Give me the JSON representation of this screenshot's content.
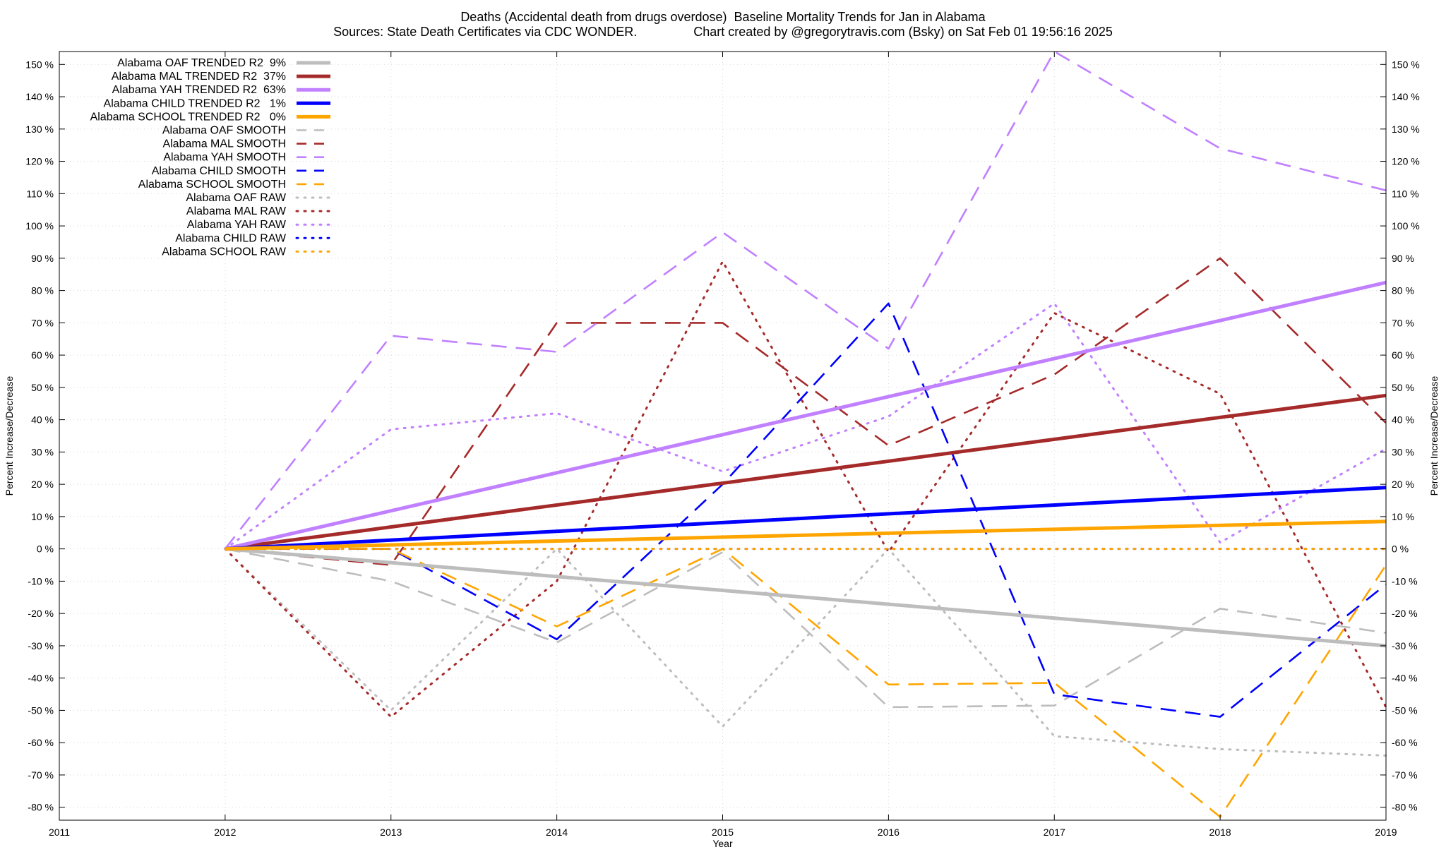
{
  "title": {
    "line1": "Deaths (Accidental death from drugs overdose)  Baseline Mortality Trends for Jan in Alabama",
    "line2": "Sources: State Death Certificates via CDC WONDER.                Chart created by @gregorytravis.com (Bsky) on Sat Feb 01 19:56:16 2025"
  },
  "chart_data": {
    "type": "line",
    "xlabel": "Year",
    "ylabel": "Percent Increase/Decrease",
    "xlim": [
      2011,
      2019
    ],
    "ylim": [
      -84,
      154
    ],
    "x_ticks": [
      2011,
      2012,
      2013,
      2014,
      2015,
      2016,
      2017,
      2018,
      2019
    ],
    "y_ticks": [
      -80,
      -70,
      -60,
      -50,
      -40,
      -30,
      -20,
      -10,
      0,
      10,
      20,
      30,
      40,
      50,
      60,
      70,
      80,
      90,
      100,
      110,
      120,
      130,
      140,
      150
    ],
    "y_tick_suffix": " %",
    "grid": true,
    "legend_position": "top-left",
    "series": [
      {
        "name": "Alabama OAF TRENDED R2  9%",
        "style": "solid",
        "color": "#bdbdbd",
        "x": [
          2012,
          2019
        ],
        "values": [
          0,
          -30
        ]
      },
      {
        "name": "Alabama MAL TRENDED R2  37%",
        "style": "solid",
        "color": "#a52a2a",
        "x": [
          2012,
          2019
        ],
        "values": [
          0,
          47.5
        ]
      },
      {
        "name": "Alabama YAH TRENDED R2  63%",
        "style": "solid",
        "color": "#c080ff",
        "x": [
          2012,
          2019
        ],
        "values": [
          0,
          82.5
        ]
      },
      {
        "name": "Alabama CHILD TRENDED R2   1%",
        "style": "solid",
        "color": "#0000ff",
        "x": [
          2012,
          2019
        ],
        "values": [
          0,
          19
        ]
      },
      {
        "name": "Alabama SCHOOL TRENDED R2   0%",
        "style": "solid",
        "color": "#ffa500",
        "x": [
          2012,
          2019
        ],
        "values": [
          0,
          8.5
        ]
      },
      {
        "name": "Alabama OAF SMOOTH",
        "style": "dashed",
        "color": "#bdbdbd",
        "x": [
          2012,
          2013,
          2014,
          2015,
          2016,
          2017,
          2018,
          2019
        ],
        "values": [
          0,
          -10,
          -29,
          -1,
          -49,
          -48.5,
          -18.5,
          -26
        ]
      },
      {
        "name": "Alabama MAL SMOOTH",
        "style": "dashed",
        "color": "#a52a2a",
        "x": [
          2012,
          2013,
          2014,
          2015,
          2016,
          2017,
          2018,
          2019
        ],
        "values": [
          0,
          -5,
          70,
          70,
          32,
          54,
          90,
          39
        ]
      },
      {
        "name": "Alabama YAH SMOOTH",
        "style": "dashed",
        "color": "#c080ff",
        "x": [
          2012,
          2013,
          2014,
          2015,
          2016,
          2017,
          2018,
          2019
        ],
        "values": [
          0,
          66,
          61,
          98,
          62,
          154,
          124,
          111
        ]
      },
      {
        "name": "Alabama CHILD SMOOTH",
        "style": "dashed",
        "color": "#0000ff",
        "x": [
          2012,
          2013,
          2014,
          2015,
          2016,
          2017,
          2018,
          2019
        ],
        "values": [
          0,
          0,
          -28,
          20,
          76,
          -45,
          -52,
          -11
        ]
      },
      {
        "name": "Alabama SCHOOL SMOOTH",
        "style": "dashed",
        "color": "#ffa500",
        "x": [
          2012,
          2013,
          2014,
          2015,
          2016,
          2017,
          2018,
          2019
        ],
        "values": [
          0,
          0,
          -24,
          0,
          -42,
          -41.5,
          -83,
          -5
        ]
      },
      {
        "name": "Alabama OAF RAW",
        "style": "dotted",
        "color": "#bdbdbd",
        "x": [
          2012,
          2013,
          2014,
          2015,
          2016,
          2017,
          2018,
          2019
        ],
        "values": [
          0,
          -50,
          0,
          -55,
          0,
          -58,
          -62,
          -64
        ]
      },
      {
        "name": "Alabama MAL RAW",
        "style": "dotted",
        "color": "#a52a2a",
        "x": [
          2012,
          2013,
          2014,
          2015,
          2016,
          2017,
          2018,
          2019
        ],
        "values": [
          0,
          -52,
          -10,
          89,
          -1,
          73,
          48,
          -49
        ]
      },
      {
        "name": "Alabama YAH RAW",
        "style": "dotted",
        "color": "#c080ff",
        "x": [
          2012,
          2013,
          2014,
          2015,
          2016,
          2017,
          2018,
          2019
        ],
        "values": [
          0,
          37,
          42,
          24,
          41,
          76,
          2,
          31
        ]
      },
      {
        "name": "Alabama CHILD RAW",
        "style": "dotted",
        "color": "#0000ff",
        "x": [
          2012,
          2013,
          2014,
          2015,
          2016,
          2017,
          2018,
          2019
        ],
        "values": [
          0,
          0,
          0,
          0,
          0,
          0,
          0,
          0
        ]
      },
      {
        "name": "Alabama SCHOOL RAW",
        "style": "dotted",
        "color": "#ffa500",
        "x": [
          2012,
          2013,
          2014,
          2015,
          2016,
          2017,
          2018,
          2019
        ],
        "values": [
          0,
          0,
          0,
          0,
          0,
          0,
          0,
          0
        ]
      }
    ]
  }
}
